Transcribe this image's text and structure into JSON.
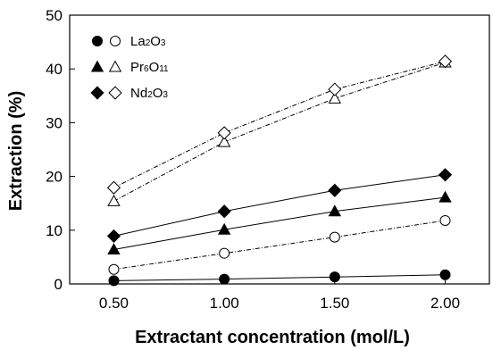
{
  "chart_data": {
    "type": "line",
    "xlabel": "Extractant concentration (mol/L)",
    "ylabel": "Extraction (%)",
    "x_ticks": [
      "0.50",
      "1.00",
      "1.50",
      "2.00"
    ],
    "y_ticks": [
      "0",
      "10",
      "20",
      "30",
      "40",
      "50"
    ],
    "xlim": [
      0.3,
      2.2
    ],
    "ylim": [
      0,
      50
    ],
    "grid": false,
    "legend_position": "top-left",
    "legend": [
      {
        "base": "La",
        "sub1": "2",
        "mid": "O",
        "sub2": "3",
        "solid_marker": "circle",
        "open_marker": "circle"
      },
      {
        "base": "Pr",
        "sub1": "6",
        "mid": "O",
        "sub2": "11",
        "solid_marker": "triangle",
        "open_marker": "triangle"
      },
      {
        "base": "Nd",
        "sub1": "2",
        "mid": "O",
        "sub2": "3",
        "solid_marker": "diamond",
        "open_marker": "diamond"
      }
    ],
    "x": [
      0.5,
      1.0,
      1.5,
      2.0
    ],
    "series": [
      {
        "compound": "La2O3",
        "marker": "circle",
        "fill": "filled",
        "line": "solid",
        "values": [
          0.6,
          0.9,
          1.3,
          1.7
        ]
      },
      {
        "compound": "La2O3",
        "marker": "circle",
        "fill": "open",
        "line": "dashdot",
        "values": [
          2.7,
          5.7,
          8.7,
          11.8
        ]
      },
      {
        "compound": "Pr6O11",
        "marker": "triangle",
        "fill": "filled",
        "line": "solid",
        "values": [
          6.4,
          10.1,
          13.5,
          16.1
        ]
      },
      {
        "compound": "Pr6O11",
        "marker": "triangle",
        "fill": "open",
        "line": "dashdot",
        "values": [
          15.4,
          26.4,
          34.5,
          41.2
        ]
      },
      {
        "compound": "Nd2O3",
        "marker": "diamond",
        "fill": "filled",
        "line": "solid",
        "values": [
          8.9,
          13.5,
          17.4,
          20.3
        ]
      },
      {
        "compound": "Nd2O3",
        "marker": "diamond",
        "fill": "open",
        "line": "dashdot",
        "values": [
          17.9,
          28.1,
          36.2,
          41.4
        ]
      }
    ]
  }
}
